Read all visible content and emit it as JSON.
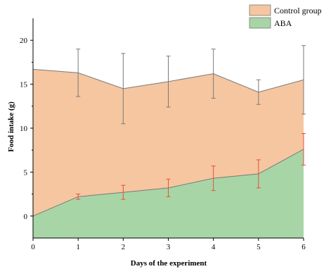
{
  "chart_data": {
    "type": "area",
    "xlabel": "Days of the experiment",
    "ylabel": "Food intake (g)",
    "x": [
      0,
      1,
      2,
      3,
      4,
      5,
      6
    ],
    "xlim": [
      0,
      6
    ],
    "ylim": [
      -2.5,
      22.5
    ],
    "xticks": [
      0,
      1,
      2,
      3,
      4,
      5,
      6
    ],
    "yticks": [
      0,
      5,
      10,
      15,
      20
    ],
    "grid": false,
    "legend_position": "top-right",
    "series": [
      {
        "name": "Control group",
        "values": [
          16.7,
          16.3,
          14.5,
          15.3,
          16.2,
          14.1,
          15.5
        ],
        "error": [
          null,
          2.7,
          4.0,
          2.9,
          2.8,
          1.4,
          3.9
        ],
        "fill_color": "#f5c6a0",
        "line_color": "#7a7a7a",
        "error_color": "#7a7a7a"
      },
      {
        "name": "ABA",
        "values": [
          0.0,
          2.2,
          2.7,
          3.2,
          4.3,
          4.8,
          7.6
        ],
        "error": [
          null,
          0.3,
          0.8,
          1.0,
          1.4,
          1.6,
          1.8
        ],
        "fill_color": "#a8d5a5",
        "line_color": "#7a7a7a",
        "error_color": "#e8503c"
      }
    ]
  }
}
